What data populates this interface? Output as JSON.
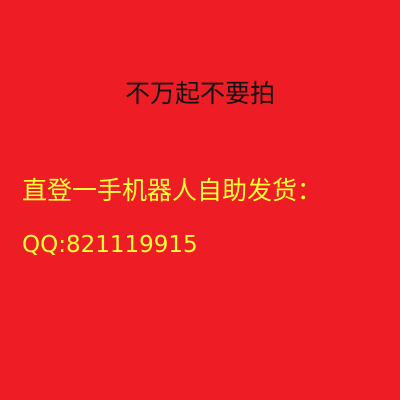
{
  "notice": {
    "text": "不万起不要拍",
    "color": "#111111"
  },
  "contact": {
    "line1": "直登一手机器人自助发货：",
    "line2": "QQ:821119915",
    "color": "#ffff33"
  },
  "background_color": "#ee1c25"
}
